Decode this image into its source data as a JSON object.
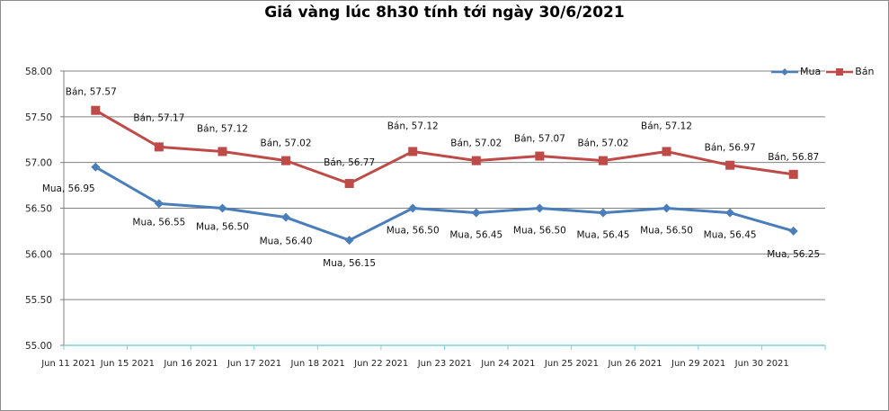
{
  "chart_data": {
    "type": "line",
    "title": "Giá vàng lúc 8h30 tính tới ngày 30/6/2021",
    "xlabel": "",
    "ylabel": "",
    "ylim": [
      55.0,
      58.0
    ],
    "yticks": [
      "58.00",
      "57.50",
      "57.00",
      "56.50",
      "56.00",
      "55.50",
      "55.00"
    ],
    "grid": true,
    "legend_position": "top-right",
    "categories": [
      "Jun 11 2021",
      "Jun 15 2021",
      "Jun 16 2021",
      "Jun 17 2021",
      "Jun 18 2021",
      "Jun 22 2021",
      "Jun 23 2021",
      "Jun 24 2021",
      "Jun 25 2021",
      "Jun 26 2021",
      "Jun 29 2021",
      "Jun 30 2021"
    ],
    "series": [
      {
        "name": "Mua",
        "color": "#4a7ebb",
        "marker": "diamond",
        "values": [
          56.95,
          56.55,
          56.5,
          56.4,
          56.15,
          56.5,
          56.45,
          56.5,
          56.45,
          56.5,
          56.45,
          56.25
        ],
        "labels": [
          "Mua, 56.95",
          "Mua, 56.55",
          "Mua, 56.50",
          "Mua, 56.40",
          "Mua, 56.15",
          "Mua, 56.50",
          "Mua, 56.45",
          "Mua, 56.50",
          "Mua, 56.45",
          "Mua, 56.50",
          "Mua, 56.45",
          "Mua, 56.25"
        ]
      },
      {
        "name": "Bán",
        "color": "#be4b48",
        "marker": "square",
        "values": [
          57.57,
          57.17,
          57.12,
          57.02,
          56.77,
          57.12,
          57.02,
          57.07,
          57.02,
          57.12,
          56.97,
          56.87
        ],
        "labels": [
          "Bán, 57.57",
          "Bán, 57.17",
          "Bán, 57.12",
          "Bán, 57.02",
          "Bán, 56.77",
          "Bán, 57.12",
          "Bán, 57.02",
          "Bán, 57.07",
          "Bán, 57.02",
          "Bán, 57.12",
          "Bán, 56.97",
          "Bán, 56.87"
        ]
      }
    ]
  },
  "legend": {
    "items": [
      {
        "label": "Mua",
        "color": "#4a7ebb"
      },
      {
        "label": "Bán",
        "color": "#be4b48"
      }
    ]
  }
}
